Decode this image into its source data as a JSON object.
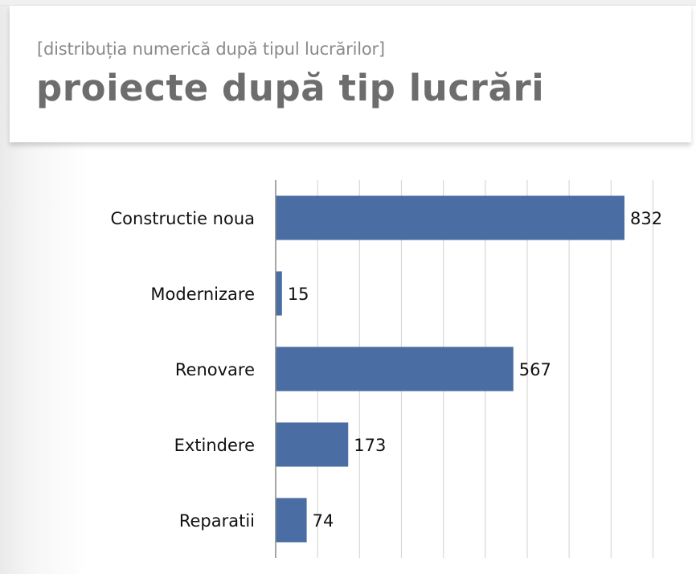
{
  "header": {
    "subtitle": "[distribuția numerică după tipul lucrărilor]",
    "title": "proiecte după tip lucrări"
  },
  "colors": {
    "bar": "#4a6ea3",
    "grid": "#d8d8d8",
    "axis": "#888888",
    "text": "#111111"
  },
  "chart_data": {
    "type": "bar",
    "orientation": "horizontal",
    "categories": [
      "Constructie noua",
      "Modernizare",
      "Renovare",
      "Extindere",
      "Reparatii"
    ],
    "values": [
      832,
      15,
      567,
      173,
      74
    ],
    "data_labels": [
      "832",
      "15",
      "567",
      "173",
      "74"
    ],
    "xlim": [
      0,
      900
    ],
    "grid": true,
    "legend": "none"
  }
}
